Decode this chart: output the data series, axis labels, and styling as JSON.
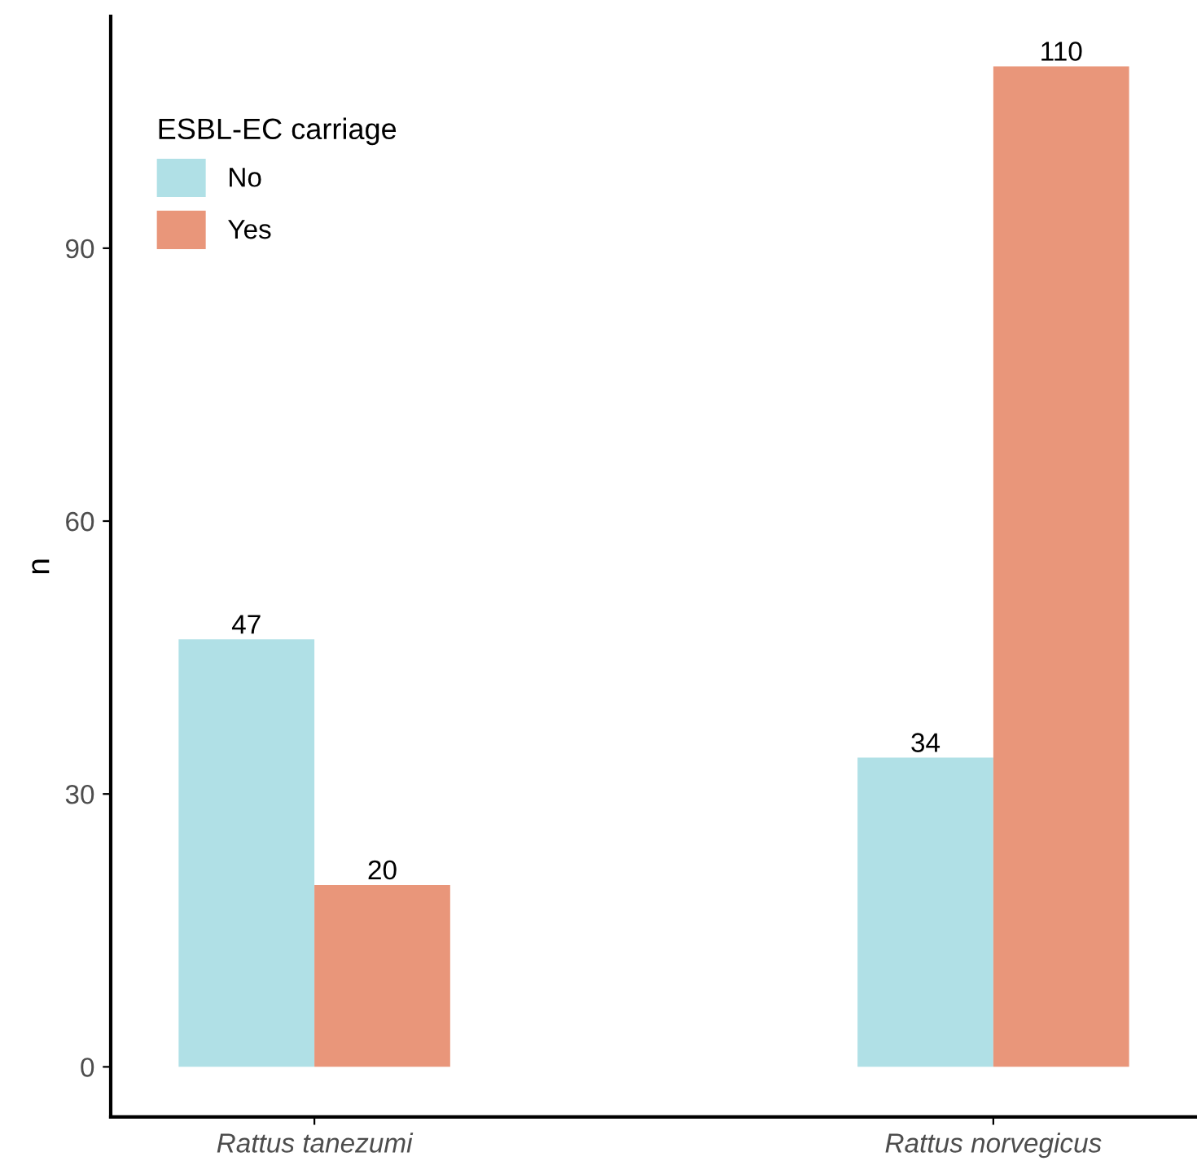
{
  "chart_data": {
    "type": "bar",
    "ylabel": "n",
    "legend_title": "ESBL-EC carriage",
    "categories": [
      "Rattus tanezumi",
      "Rattus norvegicus"
    ],
    "series": [
      {
        "name": "No",
        "color": "#b0e0e6",
        "values": [
          47,
          34
        ]
      },
      {
        "name": "Yes",
        "color": "#e9967a",
        "values": [
          20,
          110
        ]
      }
    ],
    "ylim": [
      -5.5,
      115.5
    ],
    "yticks": [
      0,
      30,
      60,
      90
    ],
    "data_labels": true,
    "legend": "top left",
    "grid": false
  }
}
